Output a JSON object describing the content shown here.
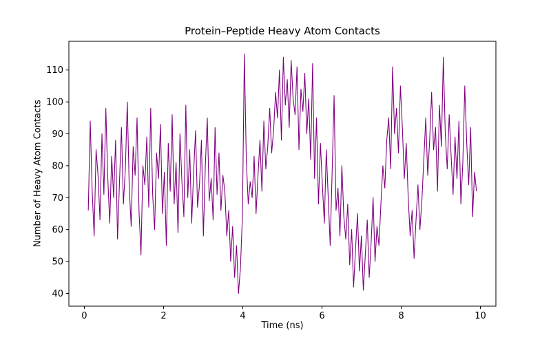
{
  "chart_data": {
    "type": "line",
    "title": "Protein–Peptide Heavy Atom Contacts",
    "xlabel": "Time (ns)",
    "ylabel": "Number of Heavy Atom Contacts",
    "line_color": "#800080",
    "background_color": "#ffffff",
    "grid": false,
    "legend": null,
    "xlim": [
      -0.39,
      10.39
    ],
    "ylim": [
      36,
      119
    ],
    "xticks": [
      0,
      2,
      4,
      6,
      8,
      10
    ],
    "yticks": [
      40,
      50,
      60,
      70,
      80,
      90,
      100,
      110
    ],
    "x_start": 0.1,
    "x_end": 9.9,
    "values": [
      66,
      94,
      72,
      58,
      85,
      77,
      63,
      90,
      71,
      98,
      76,
      62,
      83,
      70,
      88,
      57,
      75,
      92,
      68,
      79,
      100,
      73,
      61,
      86,
      77,
      95,
      66,
      52,
      80,
      74,
      89,
      67,
      98,
      71,
      60,
      84,
      76,
      93,
      65,
      78,
      55,
      87,
      72,
      96,
      68,
      81,
      59,
      90,
      75,
      64,
      99,
      70,
      85,
      62,
      78,
      91,
      67,
      74,
      88,
      58,
      80,
      95,
      69,
      76,
      63,
      92,
      71,
      84,
      66,
      77,
      72,
      58,
      66,
      50,
      61,
      45,
      55,
      40,
      48,
      64,
      115,
      82,
      68,
      75,
      70,
      83,
      65,
      77,
      88,
      72,
      94,
      79,
      86,
      98,
      84,
      91,
      103,
      95,
      110,
      88,
      114,
      99,
      107,
      92,
      113,
      101,
      96,
      111,
      85,
      104,
      97,
      109,
      90,
      101,
      82,
      112,
      76,
      95,
      68,
      87,
      74,
      62,
      85,
      70,
      55,
      78,
      102,
      66,
      73,
      58,
      80,
      64,
      57,
      68,
      49,
      60,
      42,
      54,
      65,
      47,
      58,
      41,
      52,
      63,
      45,
      56,
      70,
      50,
      61,
      55,
      68,
      80,
      73,
      88,
      95,
      79,
      111,
      90,
      98,
      84,
      105,
      92,
      76,
      87,
      70,
      58,
      66,
      51,
      63,
      74,
      60,
      69,
      82,
      95,
      77,
      88,
      103,
      85,
      92,
      72,
      99,
      86,
      114,
      90,
      79,
      96,
      83,
      71,
      89,
      76,
      94,
      68,
      81,
      105,
      87,
      74,
      92,
      64,
      78,
      72
    ]
  }
}
